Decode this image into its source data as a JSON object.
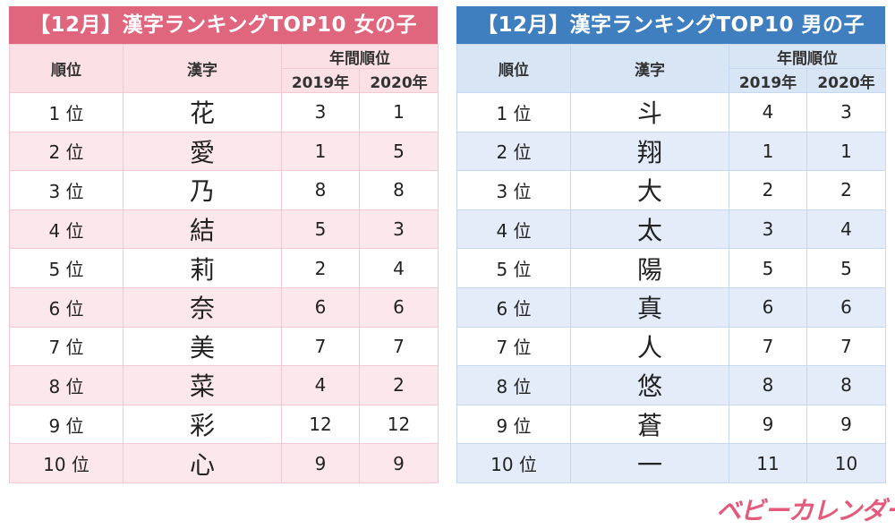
{
  "girls": {
    "title": "【12月】漢字ランキングTOP10 女の子",
    "headers": {
      "rank": "順位",
      "kanji": "漢字",
      "yearly": "年間順位",
      "y2019": "2019年",
      "y2020": "2020年"
    },
    "rows": [
      {
        "rank": "1 位",
        "kanji": "花",
        "y2019": "3",
        "y2020": "1"
      },
      {
        "rank": "2 位",
        "kanji": "愛",
        "y2019": "1",
        "y2020": "5"
      },
      {
        "rank": "3 位",
        "kanji": "乃",
        "y2019": "8",
        "y2020": "8"
      },
      {
        "rank": "4 位",
        "kanji": "結",
        "y2019": "5",
        "y2020": "3"
      },
      {
        "rank": "5 位",
        "kanji": "莉",
        "y2019": "2",
        "y2020": "4"
      },
      {
        "rank": "6 位",
        "kanji": "奈",
        "y2019": "6",
        "y2020": "6"
      },
      {
        "rank": "7 位",
        "kanji": "美",
        "y2019": "7",
        "y2020": "7"
      },
      {
        "rank": "8 位",
        "kanji": "菜",
        "y2019": "4",
        "y2020": "2"
      },
      {
        "rank": "9 位",
        "kanji": "彩",
        "y2019": "12",
        "y2020": "12"
      },
      {
        "rank": "10 位",
        "kanji": "心",
        "y2019": "9",
        "y2020": "9"
      }
    ]
  },
  "boys": {
    "title": "【12月】漢字ランキングTOP10 男の子",
    "headers": {
      "rank": "順位",
      "kanji": "漢字",
      "yearly": "年間順位",
      "y2019": "2019年",
      "y2020": "2020年"
    },
    "rows": [
      {
        "rank": "1 位",
        "kanji": "斗",
        "y2019": "4",
        "y2020": "3"
      },
      {
        "rank": "2 位",
        "kanji": "翔",
        "y2019": "1",
        "y2020": "1"
      },
      {
        "rank": "3 位",
        "kanji": "大",
        "y2019": "2",
        "y2020": "2"
      },
      {
        "rank": "4 位",
        "kanji": "太",
        "y2019": "3",
        "y2020": "4"
      },
      {
        "rank": "5 位",
        "kanji": "陽",
        "y2019": "5",
        "y2020": "5"
      },
      {
        "rank": "6 位",
        "kanji": "真",
        "y2019": "6",
        "y2020": "6"
      },
      {
        "rank": "7 位",
        "kanji": "人",
        "y2019": "7",
        "y2020": "7"
      },
      {
        "rank": "8 位",
        "kanji": "悠",
        "y2019": "8",
        "y2020": "8"
      },
      {
        "rank": "9 位",
        "kanji": "蒼",
        "y2019": "9",
        "y2020": "9"
      },
      {
        "rank": "10 位",
        "kanji": "一",
        "y2019": "11",
        "y2020": "10"
      }
    ]
  },
  "brand": {
    "logo_text": "ベビーカレンダー",
    "color": "#e45a7c"
  }
}
